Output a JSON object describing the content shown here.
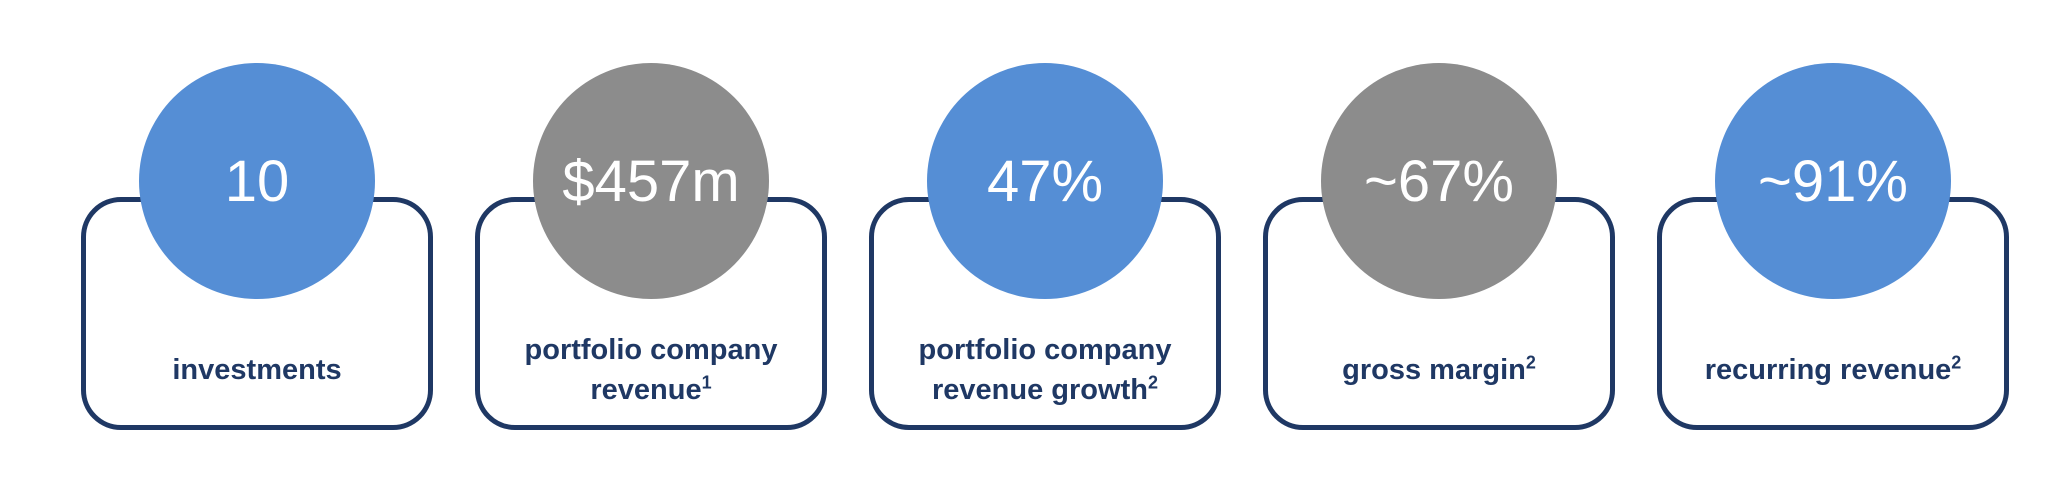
{
  "cards": [
    {
      "value": "10",
      "label": "investments",
      "color": "#558ed5"
    },
    {
      "value": "$457m",
      "label": "portfolio company revenue",
      "footnote": "1",
      "color": "#8c8c8c"
    },
    {
      "value": "47%",
      "label": "portfolio company revenue growth",
      "footnote": "2",
      "color": "#558ed5"
    },
    {
      "value": "~67%",
      "label": "gross margin",
      "footnote": "2",
      "color": "#8c8c8c"
    },
    {
      "value": "~91%",
      "label": "recurring revenue",
      "footnote": "2",
      "color": "#558ed5"
    }
  ]
}
